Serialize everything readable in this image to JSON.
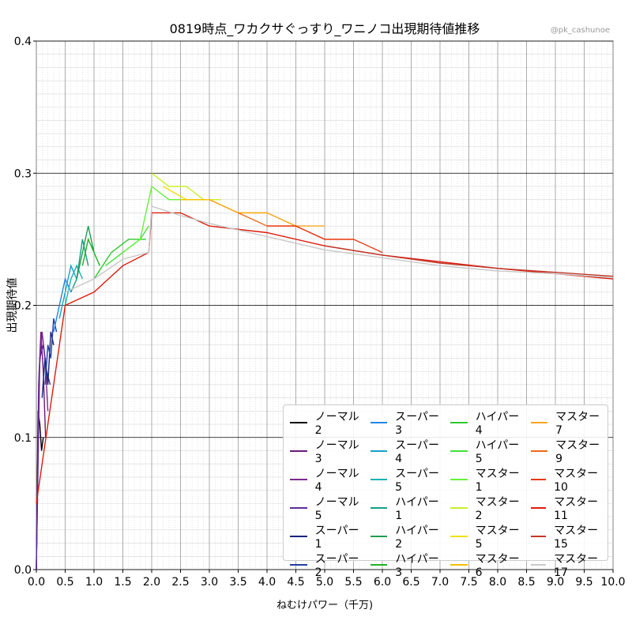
{
  "chart_data": {
    "type": "line",
    "title": "0819時点_ワカクサぐっすり_ワニノコ出現期待値推移",
    "watermark": "@pk_cashunoe",
    "xlabel": "ねむけパワー（千万)",
    "ylabel": "出現期待値",
    "xlim": [
      0,
      10
    ],
    "ylim": [
      0,
      0.4
    ],
    "xticks": [
      "0.0",
      "0.5",
      "1.0",
      "1.5",
      "2.0",
      "2.5",
      "3.0",
      "3.5",
      "4.0",
      "4.5",
      "5.0",
      "5.5",
      "6.0",
      "6.5",
      "7.0",
      "7.5",
      "8.0",
      "8.5",
      "9.0",
      "9.5",
      "10.0"
    ],
    "yticks": [
      "0.0",
      "0.1",
      "0.2",
      "0.3",
      "0.4"
    ],
    "grid": true,
    "legend_position": "lower-right",
    "series": [
      {
        "name": "ノーマル2",
        "color": "#000000",
        "x": [
          0.0,
          0.03,
          0.06,
          0.09,
          0.12
        ],
        "y": [
          0.0,
          0.12,
          0.11,
          0.09,
          0.1
        ]
      },
      {
        "name": "ノーマル3",
        "color": "#6a1b7a",
        "x": [
          0.0,
          0.04,
          0.08,
          0.12,
          0.16
        ],
        "y": [
          0.0,
          0.14,
          0.18,
          0.15,
          0.1
        ]
      },
      {
        "name": "ノーマル4",
        "color": "#7b2a8e",
        "x": [
          0.0,
          0.05,
          0.1,
          0.15,
          0.2
        ],
        "y": [
          0.0,
          0.15,
          0.18,
          0.16,
          0.12
        ]
      },
      {
        "name": "ノーマル5",
        "color": "#5b2a9a",
        "x": [
          0.0,
          0.06,
          0.12,
          0.18,
          0.24
        ],
        "y": [
          0.0,
          0.16,
          0.17,
          0.15,
          0.14
        ]
      },
      {
        "name": "スーパー1",
        "color": "#1a237e",
        "x": [
          0.1,
          0.15,
          0.2,
          0.25,
          0.3
        ],
        "y": [
          0.13,
          0.16,
          0.14,
          0.18,
          0.17
        ]
      },
      {
        "name": "スーパー2",
        "color": "#1e3fa0",
        "x": [
          0.15,
          0.2,
          0.25,
          0.3,
          0.35
        ],
        "y": [
          0.14,
          0.17,
          0.16,
          0.19,
          0.18
        ]
      },
      {
        "name": "スーパー3",
        "color": "#1e88e5",
        "x": [
          0.3,
          0.4,
          0.5,
          0.6
        ],
        "y": [
          0.18,
          0.2,
          0.22,
          0.21
        ]
      },
      {
        "name": "スーパー4",
        "color": "#1aa0c8",
        "x": [
          0.4,
          0.5,
          0.6,
          0.7
        ],
        "y": [
          0.19,
          0.21,
          0.23,
          0.22
        ]
      },
      {
        "name": "スーパー5",
        "color": "#17b3b0",
        "x": [
          0.5,
          0.6,
          0.7,
          0.8
        ],
        "y": [
          0.2,
          0.22,
          0.23,
          0.22
        ]
      },
      {
        "name": "ハイパー1",
        "color": "#169e86",
        "x": [
          0.6,
          0.7,
          0.8,
          0.9
        ],
        "y": [
          0.21,
          0.22,
          0.25,
          0.23
        ]
      },
      {
        "name": "ハイパー2",
        "color": "#1e9e50",
        "x": [
          0.7,
          0.8,
          0.9,
          1.0
        ],
        "y": [
          0.22,
          0.24,
          0.26,
          0.24
        ]
      },
      {
        "name": "ハイパー3",
        "color": "#22b022",
        "x": [
          0.8,
          0.9,
          1.0,
          1.1
        ],
        "y": [
          0.23,
          0.25,
          0.24,
          0.23
        ]
      },
      {
        "name": "ハイパー4",
        "color": "#2ec82e",
        "x": [
          1.0,
          1.3,
          1.6,
          1.9
        ],
        "y": [
          0.22,
          0.24,
          0.25,
          0.25
        ]
      },
      {
        "name": "ハイパー5",
        "color": "#44e03a",
        "x": [
          1.2,
          1.5,
          1.8,
          1.95
        ],
        "y": [
          0.23,
          0.24,
          0.25,
          0.26
        ]
      },
      {
        "name": "マスター1",
        "color": "#66f03a",
        "x": [
          1.5,
          1.8,
          2.0,
          2.3,
          2.6
        ],
        "y": [
          0.24,
          0.25,
          0.29,
          0.28,
          0.28
        ]
      },
      {
        "name": "マスター2",
        "color": "#c8f02a",
        "x": [
          2.0,
          2.3,
          2.6,
          2.9,
          3.2
        ],
        "y": [
          0.3,
          0.29,
          0.29,
          0.28,
          0.28
        ]
      },
      {
        "name": "マスター5",
        "color": "#f0e000",
        "x": [
          2.2,
          2.6,
          3.0,
          3.5,
          4.0
        ],
        "y": [
          0.29,
          0.28,
          0.28,
          0.27,
          0.27
        ]
      },
      {
        "name": "マスター6",
        "color": "#f5c000",
        "x": [
          2.5,
          3.0,
          3.5,
          4.0,
          4.5
        ],
        "y": [
          0.28,
          0.28,
          0.27,
          0.27,
          0.26
        ]
      },
      {
        "name": "マスター7",
        "color": "#f5a623",
        "x": [
          3.0,
          3.5,
          4.0,
          4.5,
          5.0
        ],
        "y": [
          0.28,
          0.27,
          0.27,
          0.26,
          0.26
        ]
      },
      {
        "name": "マスター9",
        "color": "#ee6a1a",
        "x": [
          3.5,
          4.0,
          4.5,
          5.0,
          5.5
        ],
        "y": [
          0.27,
          0.26,
          0.26,
          0.25,
          0.25
        ]
      },
      {
        "name": "マスター10",
        "color": "#e53a16",
        "x": [
          4.0,
          4.5,
          5.0,
          5.5,
          6.0
        ],
        "y": [
          0.26,
          0.26,
          0.25,
          0.25,
          0.24
        ]
      },
      {
        "name": "マスター11",
        "color": "#dd1c0c",
        "x": [
          0.0,
          0.5,
          1.0,
          1.5,
          1.95,
          2.0,
          2.5,
          3.0,
          4.0,
          5.0,
          6.0,
          7.0,
          8.0,
          9.0,
          10.0
        ],
        "y": [
          0.05,
          0.2,
          0.21,
          0.23,
          0.24,
          0.27,
          0.27,
          0.26,
          0.255,
          0.245,
          0.238,
          0.233,
          0.228,
          0.224,
          0.22
        ]
      },
      {
        "name": "マスター15",
        "color": "#c0392b",
        "x": [
          5.0,
          6.0,
          7.0,
          8.0,
          9.0,
          10.0
        ],
        "y": [
          0.245,
          0.238,
          0.232,
          0.228,
          0.225,
          0.222
        ]
      },
      {
        "name": "マスター17",
        "color": "#c8c8c8",
        "x": [
          0.5,
          1.0,
          1.5,
          1.95,
          2.0,
          2.5,
          3.0,
          4.0,
          5.0,
          6.0,
          7.0,
          8.0,
          9.0,
          10.0
        ],
        "y": [
          0.21,
          0.22,
          0.235,
          0.24,
          0.275,
          0.268,
          0.262,
          0.252,
          0.242,
          0.236,
          0.23,
          0.226,
          0.224,
          0.221
        ]
      }
    ]
  }
}
